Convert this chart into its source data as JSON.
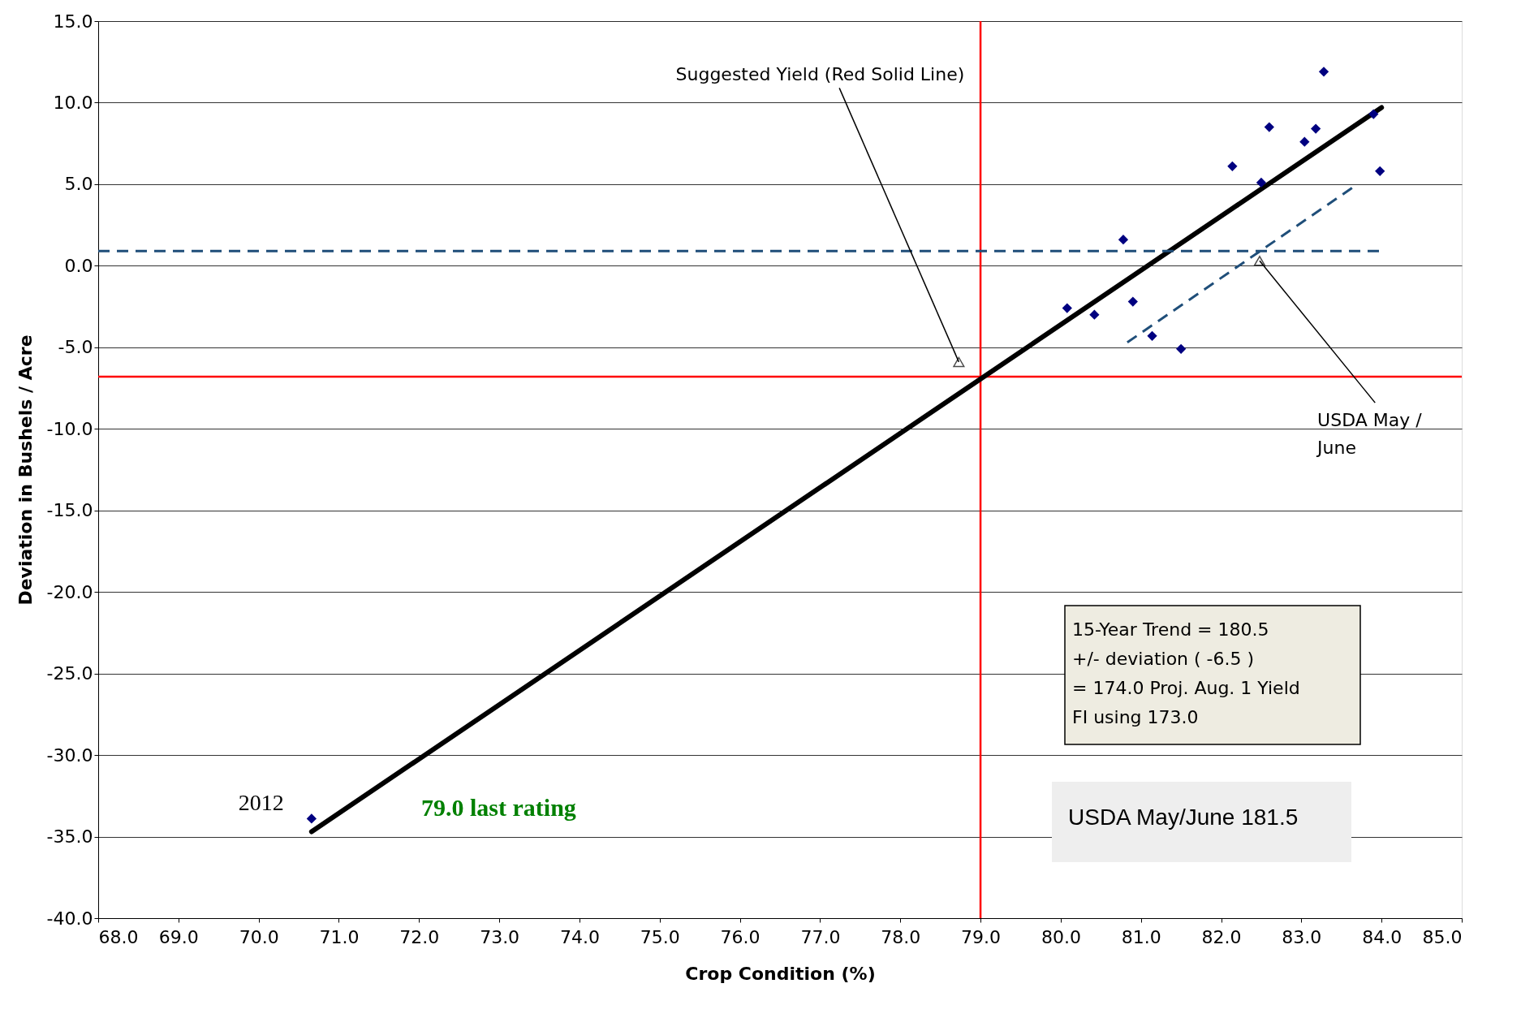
{
  "chart_data": {
    "type": "scatter",
    "xlabel": "Crop Condition (%)",
    "ylabel": "Deviation in Bushels / Acre",
    "xlim": [
      68,
      85
    ],
    "ylim": [
      -40,
      15
    ],
    "xticks": [
      {
        "value": 68,
        "label": "68.0"
      },
      {
        "value": 69,
        "label": "69.0"
      },
      {
        "value": 70,
        "label": "70.0"
      },
      {
        "value": 71,
        "label": "71.0"
      },
      {
        "value": 72,
        "label": "72.0"
      },
      {
        "value": 73,
        "label": "73.0"
      },
      {
        "value": 74,
        "label": "74.0"
      },
      {
        "value": 75,
        "label": "75.0"
      },
      {
        "value": 76,
        "label": "76.0"
      },
      {
        "value": 77,
        "label": "77.0"
      },
      {
        "value": 78,
        "label": "78.0"
      },
      {
        "value": 79,
        "label": "79.0"
      },
      {
        "value": 80,
        "label": "80.0"
      },
      {
        "value": 81,
        "label": "81.0"
      },
      {
        "value": 82,
        "label": "82.0"
      },
      {
        "value": 83,
        "label": "83.0"
      },
      {
        "value": 84,
        "label": "84.0"
      },
      {
        "value": 85,
        "label": "85.0"
      }
    ],
    "yticks": [
      {
        "value": -40,
        "label": "-40.0"
      },
      {
        "value": -35,
        "label": "-35.0"
      },
      {
        "value": -30,
        "label": "-30.0"
      },
      {
        "value": -25,
        "label": "-25.0"
      },
      {
        "value": -20,
        "label": "-20.0"
      },
      {
        "value": -15,
        "label": "-15.0"
      },
      {
        "value": -10,
        "label": "-10.0"
      },
      {
        "value": -5,
        "label": "-5.0"
      },
      {
        "value": 0,
        "label": "0.0"
      },
      {
        "value": 5,
        "label": "5.0"
      },
      {
        "value": 10,
        "label": "10.0"
      },
      {
        "value": 15,
        "label": "15.0"
      }
    ],
    "grid": "y",
    "series": [
      {
        "color": "#000080",
        "marker": "diamond",
        "x": [
          70.66,
          80.08,
          80.42,
          80.78,
          80.9,
          81.14,
          81.5,
          82.14,
          82.5,
          82.6,
          83.04,
          83.18,
          83.28,
          83.9,
          83.98
        ],
        "values": [
          -33.9,
          -2.6,
          -3.0,
          1.6,
          -2.2,
          -4.3,
          -5.1,
          6.1,
          5.1,
          8.5,
          7.6,
          8.4,
          11.9,
          9.3,
          5.8
        ]
      },
      {
        "type": "line",
        "color": "#000000",
        "line_style": "solid",
        "x": [
          70.66,
          84.0
        ],
        "values": [
          -34.7,
          9.7
        ]
      },
      {
        "type": "line",
        "color": "#1f4e79",
        "line_style": "dashed",
        "x": [
          68.0,
          84.0
        ],
        "values": [
          0.9,
          0.9
        ]
      },
      {
        "type": "line",
        "color": "#1f4e79",
        "line_style": "dashed",
        "x": [
          80.83,
          83.67
        ],
        "values": [
          -4.7,
          4.9
        ]
      }
    ],
    "ref_lines": [
      {
        "axis": "x",
        "value": 79.0,
        "color": "#ff0000"
      },
      {
        "axis": "y",
        "value": -6.8,
        "color": "#ff0000"
      }
    ],
    "annotations": [
      {
        "text": "2012",
        "x": 70.66,
        "y": -33.9
      },
      {
        "text": "Suggested Yield (Red Solid Line)",
        "x": 78.73,
        "y": -5.9
      },
      {
        "text": "USDA May /\nJune",
        "x": 82.48,
        "y": 0.3
      },
      "79.0 last rating",
      "15-Year Trend = 180.5\n+/- deviation ( -6.5 )\n=  174.0 Proj. Aug. 1 Yield\nFI using 173.0",
      "USDA May/June 181.5"
    ]
  }
}
